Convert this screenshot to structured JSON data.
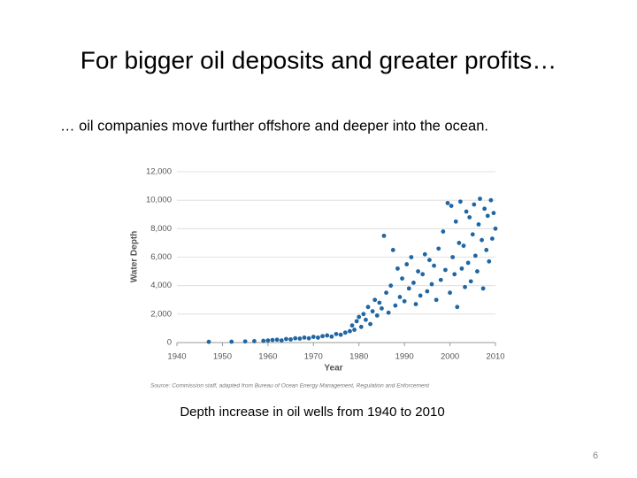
{
  "slide": {
    "title": "For bigger oil deposits and greater profits…",
    "subtitle": "… oil companies move further offshore and deeper into the ocean.",
    "caption": "Depth increase in oil wells from 1940 to 2010",
    "page_number": "6"
  },
  "chart_data": {
    "type": "scatter",
    "x_label": "Year",
    "y_label": "Water Depth",
    "source": "Source: Commission staff, adapted from Bureau of Ocean Energy Management, Regulation and Enforcement",
    "color": "#1f66a3",
    "xlim": [
      1940,
      2010
    ],
    "xticks": [
      1940,
      1950,
      1960,
      1970,
      1980,
      1990,
      2000,
      2010
    ],
    "ylim": [
      0,
      12000
    ],
    "yticks": [
      0,
      {
        "value": 2000,
        "label": "2,000"
      },
      {
        "value": 4000,
        "label": "4,000"
      },
      {
        "value": 6000,
        "label": "6,000"
      },
      {
        "value": 8000,
        "label": "8,000"
      },
      {
        "value": 10000,
        "label": "10,000"
      },
      {
        "value": 12000,
        "label": "12,000"
      }
    ],
    "grid": true,
    "x": [
      1947,
      1952,
      1955,
      1957,
      1959,
      1960,
      1961,
      1962,
      1963,
      1964,
      1965,
      1966,
      1967,
      1968,
      1969,
      1970,
      1971,
      1972,
      1973,
      1974,
      1975,
      1976,
      1977,
      1978,
      1978.5,
      1979,
      1979.5,
      1980,
      1980.5,
      1981,
      1981.5,
      1982,
      1982.5,
      1983,
      1983.5,
      1984,
      1984.5,
      1985,
      1985.5,
      1986,
      1986.5,
      1987,
      1987.5,
      1988,
      1988.5,
      1989,
      1989.5,
      1990,
      1990.5,
      1991,
      1991.5,
      1992,
      1992.5,
      1993,
      1993.5,
      1994,
      1994.5,
      1995,
      1995.5,
      1996,
      1996.5,
      1997,
      1997.5,
      1998,
      1998.5,
      1999,
      1999.5,
      2000,
      2000.3,
      2000.6,
      2001,
      2001.3,
      2001.6,
      2002,
      2002.3,
      2002.6,
      2003,
      2003.3,
      2003.6,
      2004,
      2004.3,
      2004.6,
      2005,
      2005.3,
      2005.6,
      2006,
      2006.3,
      2006.6,
      2007,
      2007.3,
      2007.6,
      2008,
      2008.3,
      2008.6,
      2009,
      2009.3,
      2009.6,
      2010
    ],
    "values": [
      50,
      60,
      80,
      100,
      120,
      150,
      180,
      200,
      150,
      250,
      220,
      300,
      280,
      350,
      300,
      400,
      350,
      450,
      500,
      420,
      600,
      550,
      700,
      800,
      1200,
      900,
      1500,
      1800,
      1100,
      2000,
      1600,
      2500,
      1300,
      2200,
      3000,
      1900,
      2800,
      2400,
      7500,
      3500,
      2100,
      4000,
      6500,
      2600,
      5200,
      3200,
      4500,
      2900,
      5500,
      3800,
      6000,
      4200,
      2700,
      5000,
      3300,
      4800,
      6200,
      3600,
      5800,
      4100,
      5400,
      3000,
      6600,
      4400,
      7800,
      5100,
      9800,
      3500,
      9600,
      6000,
      4800,
      8500,
      2500,
      7000,
      9900,
      5200,
      6800,
      3900,
      9200,
      5600,
      8800,
      4300,
      7600,
      9700,
      6100,
      5000,
      8300,
      10100,
      7200,
      3800,
      9400,
      6500,
      8900,
      5700,
      10000,
      7300,
      9100,
      8000
    ]
  }
}
